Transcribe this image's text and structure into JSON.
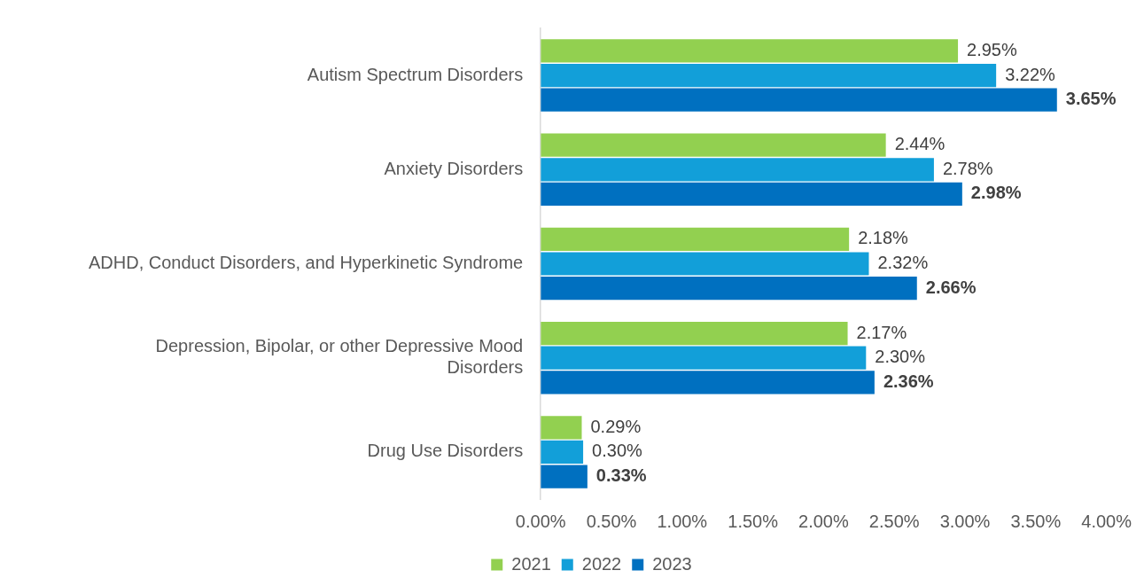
{
  "chart_data": {
    "type": "bar",
    "orientation": "horizontal",
    "categories": [
      "Autism Spectrum Disorders",
      "Anxiety Disorders",
      "ADHD, Conduct Disorders, and Hyperkinetic Syndrome",
      "Depression, Bipolar, or other Depressive Mood Disorders",
      "Drug Use Disorders"
    ],
    "series": [
      {
        "name": "2021",
        "color": "#92d050",
        "values": [
          2.95,
          2.44,
          2.18,
          2.17,
          0.29
        ],
        "value_labels": [
          "2.95%",
          "2.44%",
          "2.18%",
          "2.17%",
          "0.29%"
        ]
      },
      {
        "name": "2022",
        "color": "#129fd9",
        "values": [
          3.22,
          2.78,
          2.32,
          2.3,
          0.3
        ],
        "value_labels": [
          "3.22%",
          "2.78%",
          "2.32%",
          "2.30%",
          "0.30%"
        ]
      },
      {
        "name": "2023",
        "color": "#0070c0",
        "values": [
          3.65,
          2.98,
          2.66,
          2.36,
          0.33
        ],
        "value_labels": [
          "3.65%",
          "2.98%",
          "2.66%",
          "2.36%",
          "0.33%"
        ]
      }
    ],
    "xlim": [
      0,
      4
    ],
    "xticks": [
      {
        "value": 0,
        "label": "0.00%"
      },
      {
        "value": 0.5,
        "label": "0.50%"
      },
      {
        "value": 1,
        "label": "1.00%"
      },
      {
        "value": 1.5,
        "label": "1.50%"
      },
      {
        "value": 2,
        "label": "2.00%"
      },
      {
        "value": 2.5,
        "label": "2.50%"
      },
      {
        "value": 3,
        "label": "3.00%"
      },
      {
        "value": 3.5,
        "label": "3.50%"
      },
      {
        "value": 4,
        "label": "4.00%"
      }
    ],
    "grid": false,
    "legend": "bottom"
  }
}
